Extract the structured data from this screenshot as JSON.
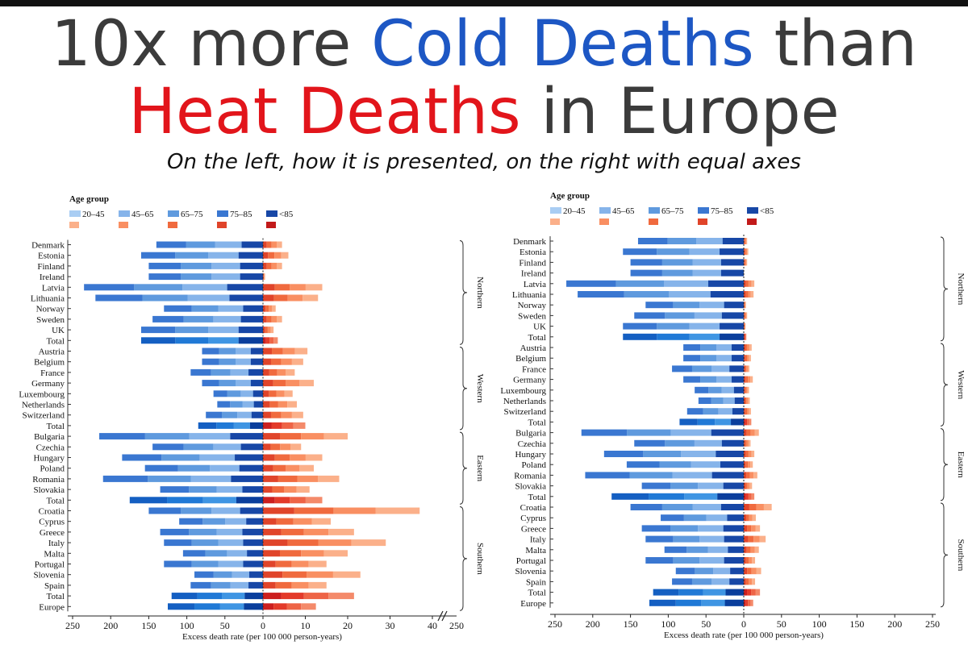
{
  "title": {
    "line1_a": "10x more ",
    "line1_b": "Cold Deaths",
    "line1_c": " than",
    "line2_a": "Heat Deaths",
    "line2_b": " in Europe"
  },
  "subtitle": "On the left, how it is presented, on the right with equal axes",
  "colors": {
    "cold": [
      "#a9cdf3",
      "#86b4ea",
      "#5f9ade",
      "#3a77d1",
      "#1747a6"
    ],
    "heat": [
      "#fbb08a",
      "#f98f62",
      "#f06a3e",
      "#e0442a",
      "#c21a1a"
    ],
    "total_cold": [
      "#5fb0ec",
      "#3f95e3",
      "#2079d6",
      "#145fc2",
      "#0a3e9c"
    ],
    "total_heat": [
      "#f48a6a",
      "#ee6446",
      "#e33a2a",
      "#cc1f1f",
      "#a60f14"
    ]
  },
  "chart_data": [
    {
      "type": "bar",
      "name": "left",
      "legend": {
        "title": "Age group",
        "labels": [
          "20–45",
          "45–65",
          "65–75",
          "75–85",
          "<85"
        ]
      },
      "xlabel": "Excess death rate (per 100 000 person-years)",
      "cold_ticks": [
        250,
        200,
        150,
        100,
        50,
        0
      ],
      "heat_ticks": [
        10,
        20,
        30,
        40
      ],
      "heat_break_tick": 250,
      "cold_range": [
        0,
        250
      ],
      "heat_range": [
        0,
        40
      ],
      "categories": [
        "Denmark",
        "Estonia",
        "Finland",
        "Ireland",
        "Latvia",
        "Lithuania",
        "Norway",
        "Sweden",
        "UK",
        "Total",
        "Austria",
        "Belgium",
        "France",
        "Germany",
        "Luxembourg",
        "Netherlands",
        "Switzerland",
        "Total",
        "Bulgaria",
        "Czechia",
        "Hungary",
        "Poland",
        "Romania",
        "Slovakia",
        "Total",
        "Croatia",
        "Cyprus",
        "Greece",
        "Italy",
        "Malta",
        "Portugal",
        "Slovenia",
        "Spain",
        "Total",
        "Europe"
      ],
      "cold": [
        140,
        160,
        150,
        150,
        235,
        220,
        130,
        145,
        160,
        160,
        80,
        80,
        95,
        80,
        65,
        60,
        75,
        85,
        215,
        145,
        185,
        155,
        210,
        135,
        175,
        150,
        110,
        135,
        130,
        105,
        130,
        90,
        95,
        120,
        125
      ],
      "heat": [
        4.5,
        6,
        4.5,
        0.5,
        14,
        13,
        3,
        4.5,
        2.5,
        3.5,
        10.5,
        9.5,
        7.5,
        12,
        7,
        8,
        9.5,
        10,
        20,
        9,
        14,
        12,
        18,
        11,
        14,
        37,
        16,
        21.5,
        29,
        20,
        15,
        23,
        15,
        21.5,
        12.5
      ],
      "groups": [
        {
          "name": "Northern",
          "start": 0,
          "end": 9
        },
        {
          "name": "Western",
          "start": 10,
          "end": 17
        },
        {
          "name": "Eastern",
          "start": 18,
          "end": 24
        },
        {
          "name": "Southern",
          "start": 25,
          "end": 34
        }
      ]
    },
    {
      "type": "bar",
      "name": "right",
      "legend": {
        "title": "Age group",
        "labels": [
          "20–45",
          "45–65",
          "65–75",
          "75–85",
          "<85"
        ]
      },
      "xlabel": "Excess death rate (per 100 000 person-years)",
      "cold_ticks": [
        250,
        200,
        150,
        100,
        50,
        0
      ],
      "heat_ticks": [
        50,
        100,
        150,
        200,
        250
      ],
      "cold_range": [
        0,
        250
      ],
      "heat_range": [
        0,
        250
      ],
      "categories": [
        "Denmark",
        "Estonia",
        "Finland",
        "Ireland",
        "Latvia",
        "Lithuania",
        "Norway",
        "Sweden",
        "UK",
        "Total",
        "Austria",
        "Belgium",
        "France",
        "Germany",
        "Luxembourg",
        "Netherlands",
        "Switzerland",
        "Total",
        "Bulgaria",
        "Czechia",
        "Hungary",
        "Poland",
        "Romania",
        "Slovakia",
        "Total",
        "Croatia",
        "Cyprus",
        "Greece",
        "Italy",
        "Malta",
        "Portugal",
        "Slovenia",
        "Spain",
        "Total",
        "Europe"
      ],
      "cold": [
        140,
        160,
        150,
        150,
        235,
        220,
        130,
        145,
        160,
        160,
        80,
        80,
        95,
        80,
        65,
        60,
        75,
        85,
        215,
        145,
        185,
        155,
        210,
        135,
        175,
        150,
        110,
        135,
        130,
        105,
        130,
        90,
        95,
        120,
        125
      ],
      "heat": [
        4.5,
        6,
        4.5,
        0.5,
        14,
        13,
        3,
        4.5,
        2.5,
        3.5,
        10.5,
        9.5,
        7.5,
        12,
        7,
        8,
        9.5,
        10,
        20,
        9,
        14,
        12,
        18,
        11,
        14,
        37,
        16,
        21.5,
        29,
        20,
        15,
        23,
        15,
        21.5,
        12.5
      ],
      "groups": [
        {
          "name": "Northern",
          "start": 0,
          "end": 9
        },
        {
          "name": "Western",
          "start": 10,
          "end": 17
        },
        {
          "name": "Eastern",
          "start": 18,
          "end": 24
        },
        {
          "name": "Southern",
          "start": 25,
          "end": 34
        }
      ]
    }
  ]
}
